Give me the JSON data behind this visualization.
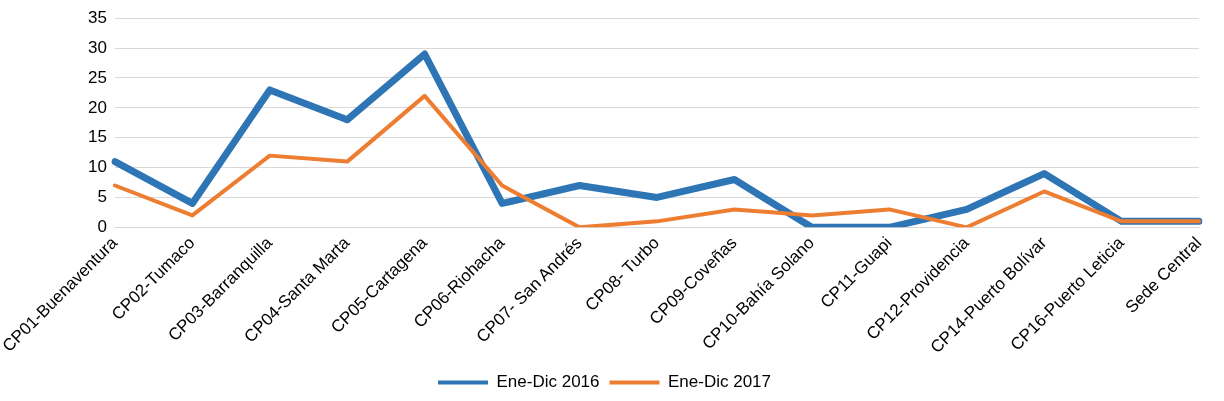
{
  "chart_data": {
    "type": "line",
    "categories": [
      "CP01-Buenaventura",
      "CP02-Tumaco",
      "CP03-Barranquilla",
      "CP04-Santa Marta",
      "CP05-Cartagena",
      "CP06-Riohacha",
      "CP07- San Andrés",
      "CP08- Turbo",
      "CP09-Coveñas",
      "CP10-Bahía Solano",
      "CP11-Guapi",
      "CP12-Providencia",
      "CP14-Puerto Bolívar",
      "CP16-Puerto Leticia",
      "Sede Central"
    ],
    "series": [
      {
        "name": "Ene-Dic 2016",
        "color": "#2e75b6",
        "values": [
          11,
          4,
          23,
          18,
          29,
          4,
          7,
          5,
          8,
          0,
          0,
          3,
          9,
          1,
          1
        ]
      },
      {
        "name": "Ene-Dic 2017",
        "color": "#ed7d31",
        "values": [
          7,
          2,
          12,
          11,
          22,
          7,
          0,
          1,
          3,
          2,
          3,
          0,
          6,
          1,
          1
        ]
      }
    ],
    "ylim": [
      0,
      35
    ],
    "yticks": [
      0,
      5,
      10,
      15,
      20,
      25,
      30,
      35
    ],
    "grid": "y",
    "legend": "bottom",
    "marker": "none",
    "line_style": "solid"
  }
}
